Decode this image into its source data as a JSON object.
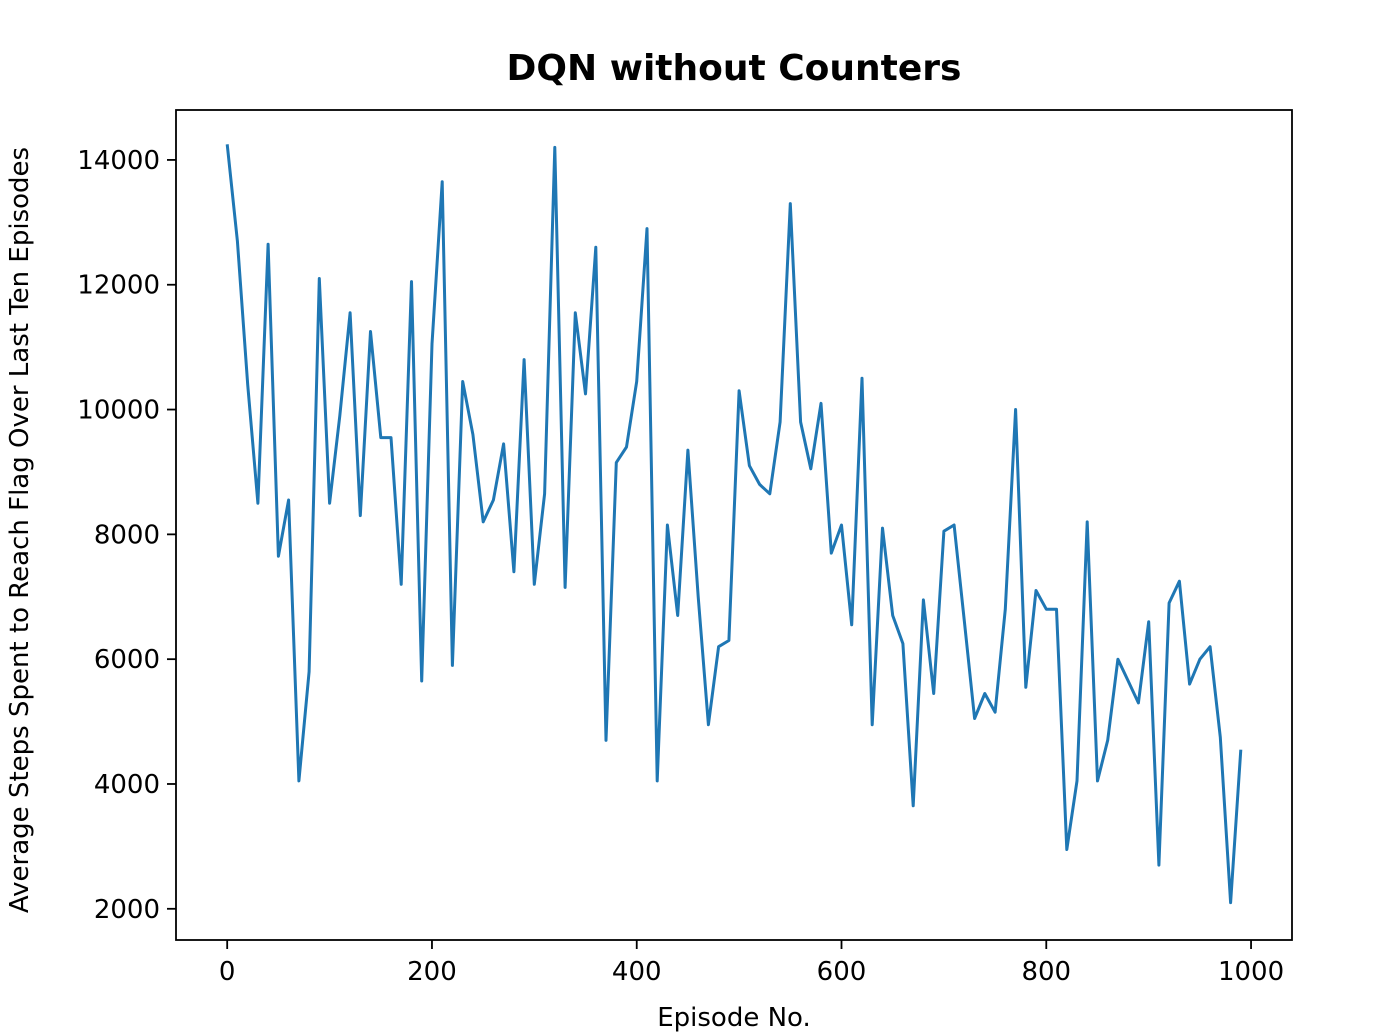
{
  "chart_data": {
    "type": "line",
    "title": "DQN without Counters",
    "xlabel": "Episode No.",
    "ylabel": "Average Steps Spent to Reach Flag Over Last Ten Episodes",
    "xlim": [
      -50,
      1040
    ],
    "ylim": [
      1500,
      14800
    ],
    "xticks": [
      0,
      200,
      400,
      600,
      800,
      1000
    ],
    "yticks": [
      2000,
      4000,
      6000,
      8000,
      10000,
      12000,
      14000
    ],
    "grid": false,
    "line_color": "#1f77b4",
    "series": [
      {
        "x": [
          0,
          10,
          20,
          30,
          40,
          50,
          60,
          70,
          80,
          90,
          100,
          110,
          120,
          130,
          140,
          150,
          160,
          170,
          180,
          190,
          200,
          210,
          220,
          230,
          240,
          250,
          260,
          270,
          280,
          290,
          300,
          310,
          320,
          330,
          340,
          350,
          360,
          370,
          380,
          390,
          400,
          410,
          420,
          430,
          440,
          450,
          460,
          470,
          480,
          490,
          500,
          510,
          520,
          530,
          540,
          550,
          560,
          570,
          580,
          590,
          600,
          610,
          620,
          630,
          640,
          650,
          660,
          670,
          680,
          690,
          700,
          710,
          720,
          730,
          740,
          750,
          760,
          770,
          780,
          790,
          800,
          810,
          820,
          830,
          840,
          850,
          860,
          870,
          880,
          890,
          900,
          910,
          920,
          930,
          940,
          950,
          960,
          970,
          980,
          990
        ],
        "values": [
          14250,
          12700,
          10400,
          8500,
          12650,
          7650,
          8550,
          4050,
          5800,
          12100,
          8500,
          9900,
          11550,
          8300,
          11250,
          9550,
          9550,
          7200,
          12050,
          5650,
          11050,
          13650,
          5900,
          10450,
          9600,
          8200,
          8550,
          9450,
          7400,
          10800,
          7200,
          8650,
          14200,
          7150,
          11550,
          10250,
          12600,
          4700,
          9150,
          9400,
          10450,
          12900,
          4050,
          8150,
          6700,
          9350,
          7000,
          4950,
          6200,
          6300,
          10300,
          9100,
          8800,
          8650,
          9800,
          13300,
          9800,
          9050,
          10100,
          7700,
          8150,
          6550,
          10500,
          4950,
          8100,
          6700,
          6250,
          3650,
          6950,
          5450,
          8050,
          8150,
          6600,
          5050,
          5450,
          5150,
          6800,
          10000,
          5550,
          7100,
          6800,
          6800,
          2950,
          4050,
          8200,
          4050,
          4700,
          6000,
          5650,
          5300,
          6600,
          2700,
          6900,
          7250,
          5600,
          6000,
          6200,
          4750,
          2100,
          4550
        ]
      }
    ]
  }
}
